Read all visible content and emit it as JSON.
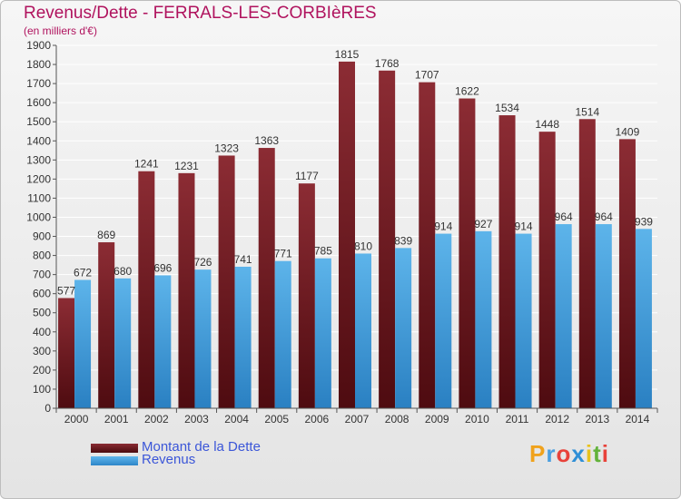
{
  "title": "Revenus/Dette - FERRALS-LES-CORBIèRES",
  "subtitle": "(en milliers d'€)",
  "legend": {
    "dette": "Montant de la Dette",
    "revenus": "Revenus"
  },
  "logo": {
    "letters": [
      "P",
      "r",
      "o",
      "x",
      "i",
      "t",
      "i"
    ],
    "colors": [
      "#f0a21c",
      "#4a9fe0",
      "#e8423a",
      "#2f8fd6",
      "#e8c21c",
      "#62b23a",
      "#e8423a"
    ]
  },
  "colors": {
    "dette": "#7a1c24",
    "revenus": "#4aa3e2",
    "title": "#b0135e"
  },
  "chart_data": {
    "type": "bar",
    "categories": [
      "2000",
      "2001",
      "2002",
      "2003",
      "2004",
      "2005",
      "2006",
      "2007",
      "2008",
      "2009",
      "2010",
      "2011",
      "2012",
      "2013",
      "2014"
    ],
    "series": [
      {
        "name": "Montant de la Dette",
        "values": [
          577,
          869,
          1241,
          1231,
          1323,
          1363,
          1177,
          1815,
          1768,
          1707,
          1622,
          1534,
          1448,
          1514,
          1409
        ]
      },
      {
        "name": "Revenus",
        "values": [
          672,
          680,
          696,
          726,
          741,
          771,
          785,
          810,
          839,
          914,
          927,
          914,
          964,
          964,
          939
        ]
      }
    ],
    "ylim": [
      0,
      1900
    ],
    "ytick_step": 100,
    "grid": true,
    "legend_position": "bottom-left"
  }
}
